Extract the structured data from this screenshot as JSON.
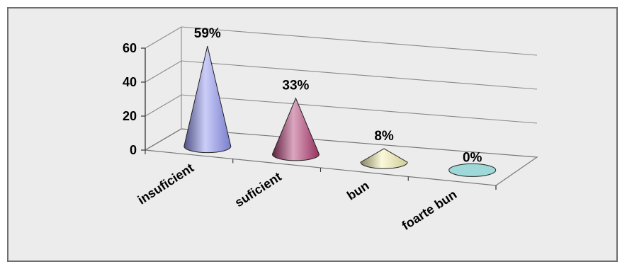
{
  "chart_data": {
    "type": "bar",
    "style": "3d-cone",
    "categories": [
      "insuficient",
      "suficient",
      "bun",
      "foarte bun"
    ],
    "values": [
      59,
      33,
      8,
      0
    ],
    "data_labels": [
      "59%",
      "33%",
      "8%",
      "0%"
    ],
    "title": "",
    "xlabel": "",
    "ylabel": "",
    "ylim": [
      0,
      60
    ],
    "yticks": [
      "0",
      "20",
      "40",
      "60"
    ],
    "grid": true,
    "legend": "none",
    "colors": [
      "#8e93f0",
      "#b03a70",
      "#f5f0b0",
      "#9ed8d8"
    ]
  }
}
